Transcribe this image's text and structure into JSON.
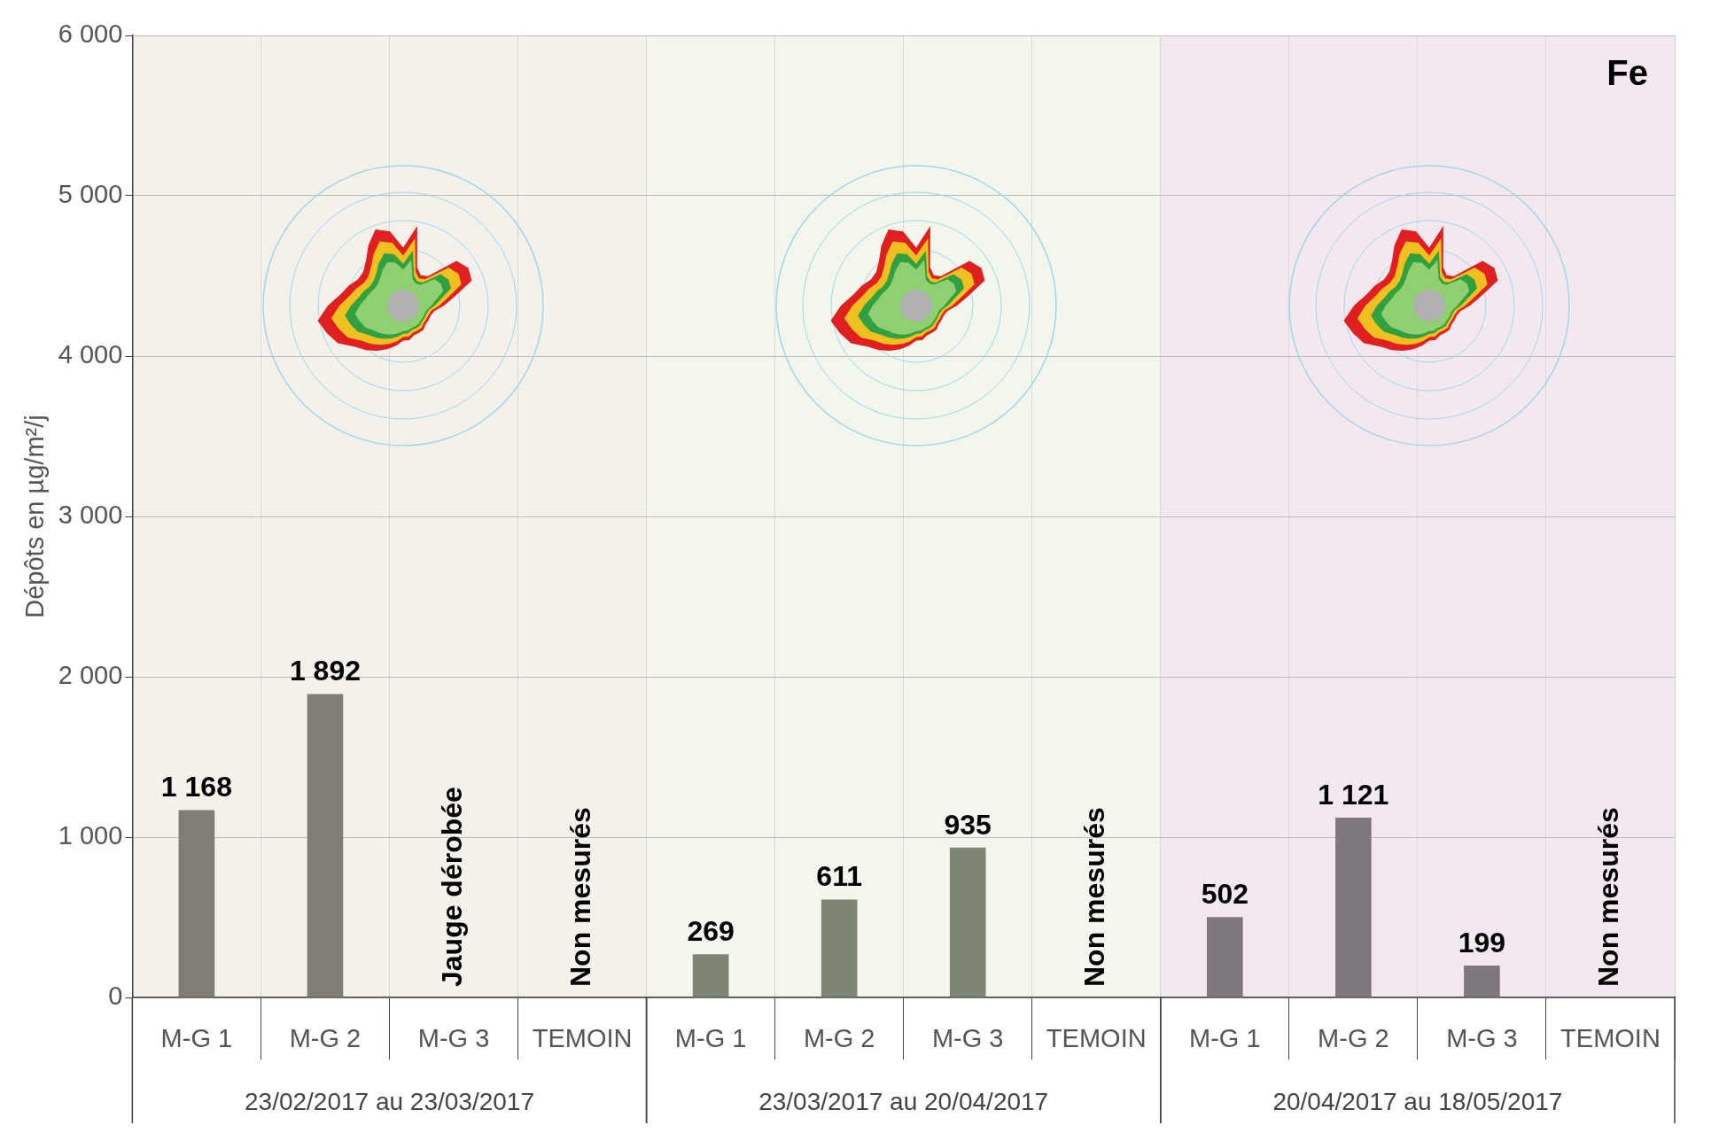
{
  "chart_data": {
    "type": "bar",
    "ylabel": "Dépôts en µg/m²/j",
    "annotations": [
      "Fe",
      "23/02/2017 au 23/03/2017",
      "23/03/2017 au 20/04/2017",
      "20/04/2017 au 18/05/2017"
    ],
    "categories": [
      "M-G 1",
      "M-G 2",
      "M-G 3",
      "TEMOIN",
      "M-G 1",
      "M-G 2",
      "M-G 3",
      "TEMOIN",
      "M-G 1",
      "M-G 2",
      "M-G 3",
      "TEMOIN"
    ],
    "values": [
      1168,
      1892,
      null,
      null,
      269,
      611,
      935,
      null,
      502,
      1121,
      199,
      null
    ],
    "colors": [
      "#807d74",
      "#807d74",
      "#807d74",
      "#807d74",
      "#7e8577",
      "#7e8577",
      "#7e8577",
      "#7e8577",
      "#7f7780",
      "#7f7780",
      "#7f7780",
      "#7f7780"
    ],
    "value_labels": [
      "1 168",
      "1 892",
      "Jauge dérobée",
      "Non mesurés",
      "269",
      "611",
      "935",
      "Non mesurés",
      "502",
      "1 121",
      "199",
      "Non mesurés"
    ],
    "ylim": [
      0,
      6000
    ],
    "yticks": [
      {
        "value": 0,
        "label": "0"
      },
      {
        "value": 1000,
        "label": "1 000"
      },
      {
        "value": 2000,
        "label": "2 000"
      },
      {
        "value": 3000,
        "label": "3 000"
      },
      {
        "value": 4000,
        "label": "4 000"
      },
      {
        "value": 5000,
        "label": "5 000"
      },
      {
        "value": 6000,
        "label": "6 000"
      }
    ],
    "grid": true,
    "legend": false
  }
}
